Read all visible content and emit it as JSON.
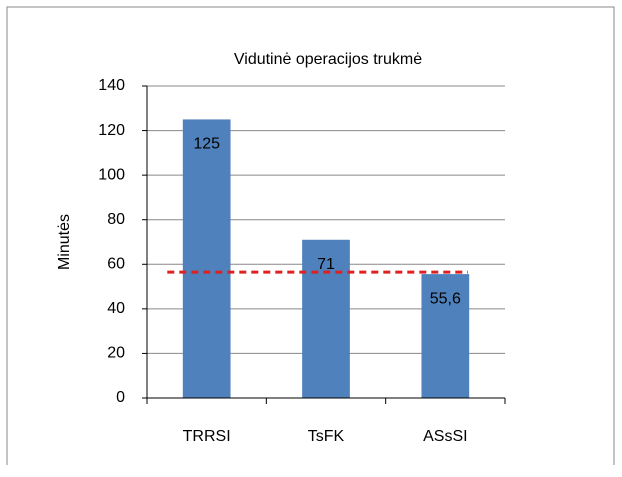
{
  "chart_data": {
    "type": "bar",
    "title": "Vidutinė operacijos trukmė",
    "y_label": "Minutės",
    "categories": [
      "TRRSI",
      "TsFK",
      "ASsSI"
    ],
    "values": [
      125,
      71,
      55.6
    ],
    "value_labels": [
      "125",
      "71",
      "55,6"
    ],
    "color": "#4f81bd",
    "ylim": [
      0,
      140
    ],
    "yticks": [
      0,
      20,
      40,
      60,
      80,
      100,
      120,
      140
    ],
    "grid": true,
    "reference_line": {
      "value": 56.5,
      "color": "#e02020"
    }
  }
}
